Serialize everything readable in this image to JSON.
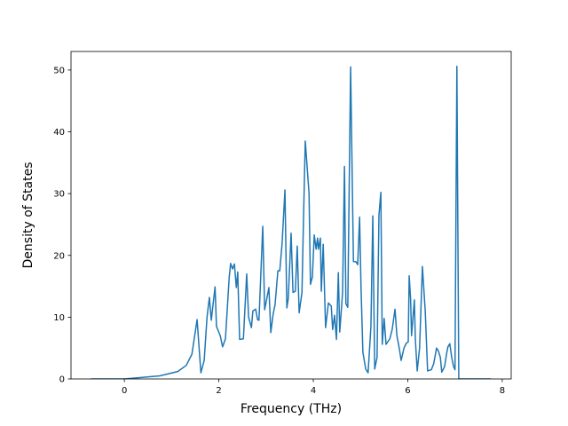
{
  "chart_data": {
    "type": "line",
    "xlabel": "Frequency (THz)",
    "ylabel": "Density of States",
    "color": "#1f77b4",
    "x": [
      -0.71,
      0,
      0.75,
      1.13,
      1.31,
      1.43,
      1.54,
      1.62,
      1.69,
      1.75,
      1.8,
      1.84,
      1.92,
      1.95,
      2.03,
      2.08,
      2.14,
      2.22,
      2.25,
      2.29,
      2.33,
      2.37,
      2.4,
      2.44,
      2.52,
      2.59,
      2.63,
      2.69,
      2.72,
      2.78,
      2.82,
      2.85,
      2.93,
      2.97,
      3.06,
      3.1,
      3.15,
      3.19,
      3.25,
      3.29,
      3.34,
      3.4,
      3.44,
      3.47,
      3.53,
      3.57,
      3.62,
      3.66,
      3.7,
      3.76,
      3.79,
      3.83,
      3.91,
      3.94,
      3.98,
      4.02,
      4.06,
      4.09,
      4.11,
      4.15,
      4.17,
      4.21,
      4.26,
      4.32,
      4.38,
      4.41,
      4.45,
      4.49,
      4.53,
      4.56,
      4.62,
      4.66,
      4.69,
      4.73,
      4.79,
      4.85,
      4.9,
      4.94,
      4.98,
      5.01,
      5.05,
      5.11,
      5.16,
      5.22,
      5.26,
      5.3,
      5.35,
      5.39,
      5.43,
      5.46,
      5.5,
      5.54,
      5.62,
      5.67,
      5.73,
      5.77,
      5.82,
      5.86,
      5.92,
      5.97,
      6.01,
      6.03,
      6.06,
      6.08,
      6.14,
      6.16,
      6.2,
      6.25,
      6.31,
      6.37,
      6.42,
      6.5,
      6.55,
      6.61,
      6.65,
      6.69,
      6.72,
      6.78,
      6.82,
      6.85,
      6.89,
      6.93,
      6.97,
      7.0,
      7.04,
      7.08,
      7.76
    ],
    "values": [
      0,
      0,
      0.5,
      1.2,
      2.2,
      4,
      9.6,
      1,
      3,
      10,
      13.2,
      9.5,
      14.9,
      8.5,
      7,
      5.2,
      6.5,
      16.5,
      18.7,
      17.8,
      18.6,
      14.8,
      17.3,
      6.4,
      6.5,
      17,
      10,
      8.3,
      11,
      11.3,
      9.6,
      9.5,
      24.7,
      11.2,
      14.8,
      7.5,
      10.5,
      12,
      17.5,
      17.5,
      22,
      30.6,
      11.5,
      13,
      23.6,
      14,
      14.2,
      21.5,
      10.7,
      14,
      25,
      38.5,
      30,
      15.3,
      16.5,
      23.3,
      21,
      22.8,
      21,
      22.8,
      14.2,
      21.8,
      8.3,
      12.3,
      11.8,
      8,
      10.3,
      6.4,
      17.2,
      7.6,
      14,
      34.4,
      12.2,
      11.6,
      50.5,
      19,
      19,
      18.5,
      26.2,
      15,
      4.3,
      1.6,
      1,
      8.5,
      26.4,
      1.6,
      3.5,
      26.5,
      30.2,
      5.6,
      9.8,
      5.6,
      6.5,
      8,
      11.3,
      7,
      5,
      3,
      5,
      5.8,
      6,
      16.7,
      13,
      7,
      12.8,
      6.5,
      1.3,
      5,
      18.2,
      11,
      1.3,
      1.5,
      2.5,
      5,
      4.5,
      3.5,
      1.1,
      2,
      4,
      5.2,
      5.7,
      3.5,
      2,
      1.5,
      50.6,
      0,
      0
    ],
    "xlim": [
      -1.13,
      8.19
    ],
    "xticks": [
      0,
      2,
      4,
      6,
      8
    ],
    "ylim": [
      0,
      53
    ],
    "yticks": [
      0,
      10,
      20,
      30,
      40,
      50
    ]
  }
}
